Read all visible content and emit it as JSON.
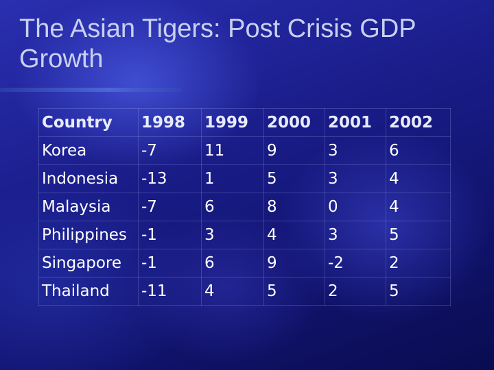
{
  "header": {
    "title": "The Asian Tigers: Post Crisis GDP Growth"
  },
  "table": {
    "columns": [
      "Country",
      "1998",
      "1999",
      "2000",
      "2001",
      "2002"
    ],
    "rows": [
      [
        "Korea",
        -7,
        11,
        9,
        3,
        6
      ],
      [
        "Indonesia",
        -13,
        1,
        5,
        3,
        4
      ],
      [
        "Malaysia",
        -7,
        6,
        8,
        0,
        4
      ],
      [
        "Philippines",
        -1,
        3,
        4,
        3,
        5
      ],
      [
        "Singapore",
        -1,
        6,
        9,
        -2,
        2
      ],
      [
        "Thailand",
        -11,
        4,
        5,
        2,
        5
      ]
    ]
  }
}
